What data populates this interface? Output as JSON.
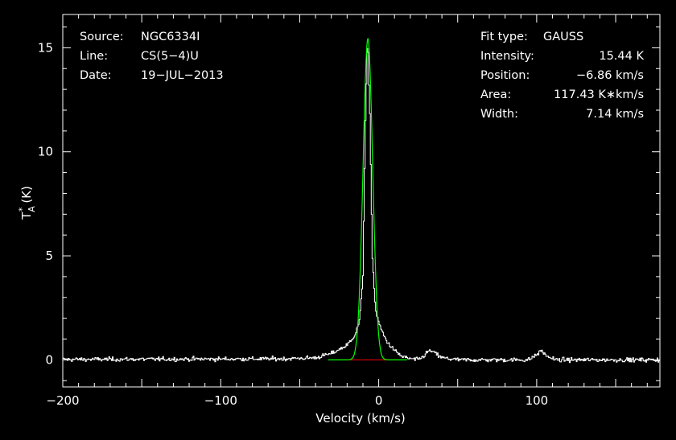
{
  "chart_data": {
    "type": "line",
    "xlabel": "Velocity (km/s)",
    "ylabel": "T",
    "ylabel_sub": "A",
    "ylabel_sup": "*",
    "ylabel_unit": "(K)",
    "xlim": [
      -200,
      178
    ],
    "ylim": [
      -1.3,
      16.6
    ],
    "xticks": [
      -200,
      -100,
      0,
      100
    ],
    "yticks": [
      0,
      5,
      10,
      15
    ],
    "grid": false,
    "info_left": [
      {
        "key": "Source:",
        "value": "NGC6334I"
      },
      {
        "key": "Line:",
        "value": "CS(5−4)U"
      },
      {
        "key": "Date:",
        "value": "19−JUL−2013"
      }
    ],
    "info_right": [
      {
        "key": "Fit type:",
        "value": "GAUSS"
      },
      {
        "key": "Intensity:",
        "value": "15.44 K"
      },
      {
        "key": "Position:",
        "value": "−6.86 km/s"
      },
      {
        "key": "Area:",
        "value": "117.43 K∗km/s"
      },
      {
        "key": "Width:",
        "value": "7.14 km/s"
      }
    ],
    "fit": {
      "amplitude": 15.44,
      "center": -6.86,
      "fwhm": 7.14
    },
    "baseline_segment": [
      -30,
      15
    ],
    "spectrum_profile": [
      [
        -200,
        0.02
      ],
      [
        -60,
        0.05
      ],
      [
        -40,
        0.1
      ],
      [
        -30,
        0.3
      ],
      [
        -20,
        0.7
      ],
      [
        -15,
        1.2
      ],
      [
        -12,
        1.9
      ],
      [
        -10,
        4.0
      ],
      [
        -8.5,
        11.0
      ],
      [
        -7,
        15.6
      ],
      [
        -5.5,
        11.5
      ],
      [
        -4,
        5.0
      ],
      [
        -2,
        2.4
      ],
      [
        0,
        1.8
      ],
      [
        3,
        1.2
      ],
      [
        6,
        0.8
      ],
      [
        10,
        0.45
      ],
      [
        15,
        0.15
      ],
      [
        20,
        0.05
      ],
      [
        25,
        0.0
      ],
      [
        28,
        0.15
      ],
      [
        32,
        0.45
      ],
      [
        35,
        0.35
      ],
      [
        40,
        0.1
      ],
      [
        50,
        0.0
      ],
      [
        95,
        0.0
      ],
      [
        100,
        0.25
      ],
      [
        103,
        0.45
      ],
      [
        106,
        0.2
      ],
      [
        112,
        0.0
      ],
      [
        178,
        0.0
      ]
    ],
    "colors": {
      "background": "#000000",
      "spectrum": "#ffffff",
      "fit": "#00ff00",
      "baseline": "#ff0000",
      "axes": "#ffffff"
    }
  }
}
